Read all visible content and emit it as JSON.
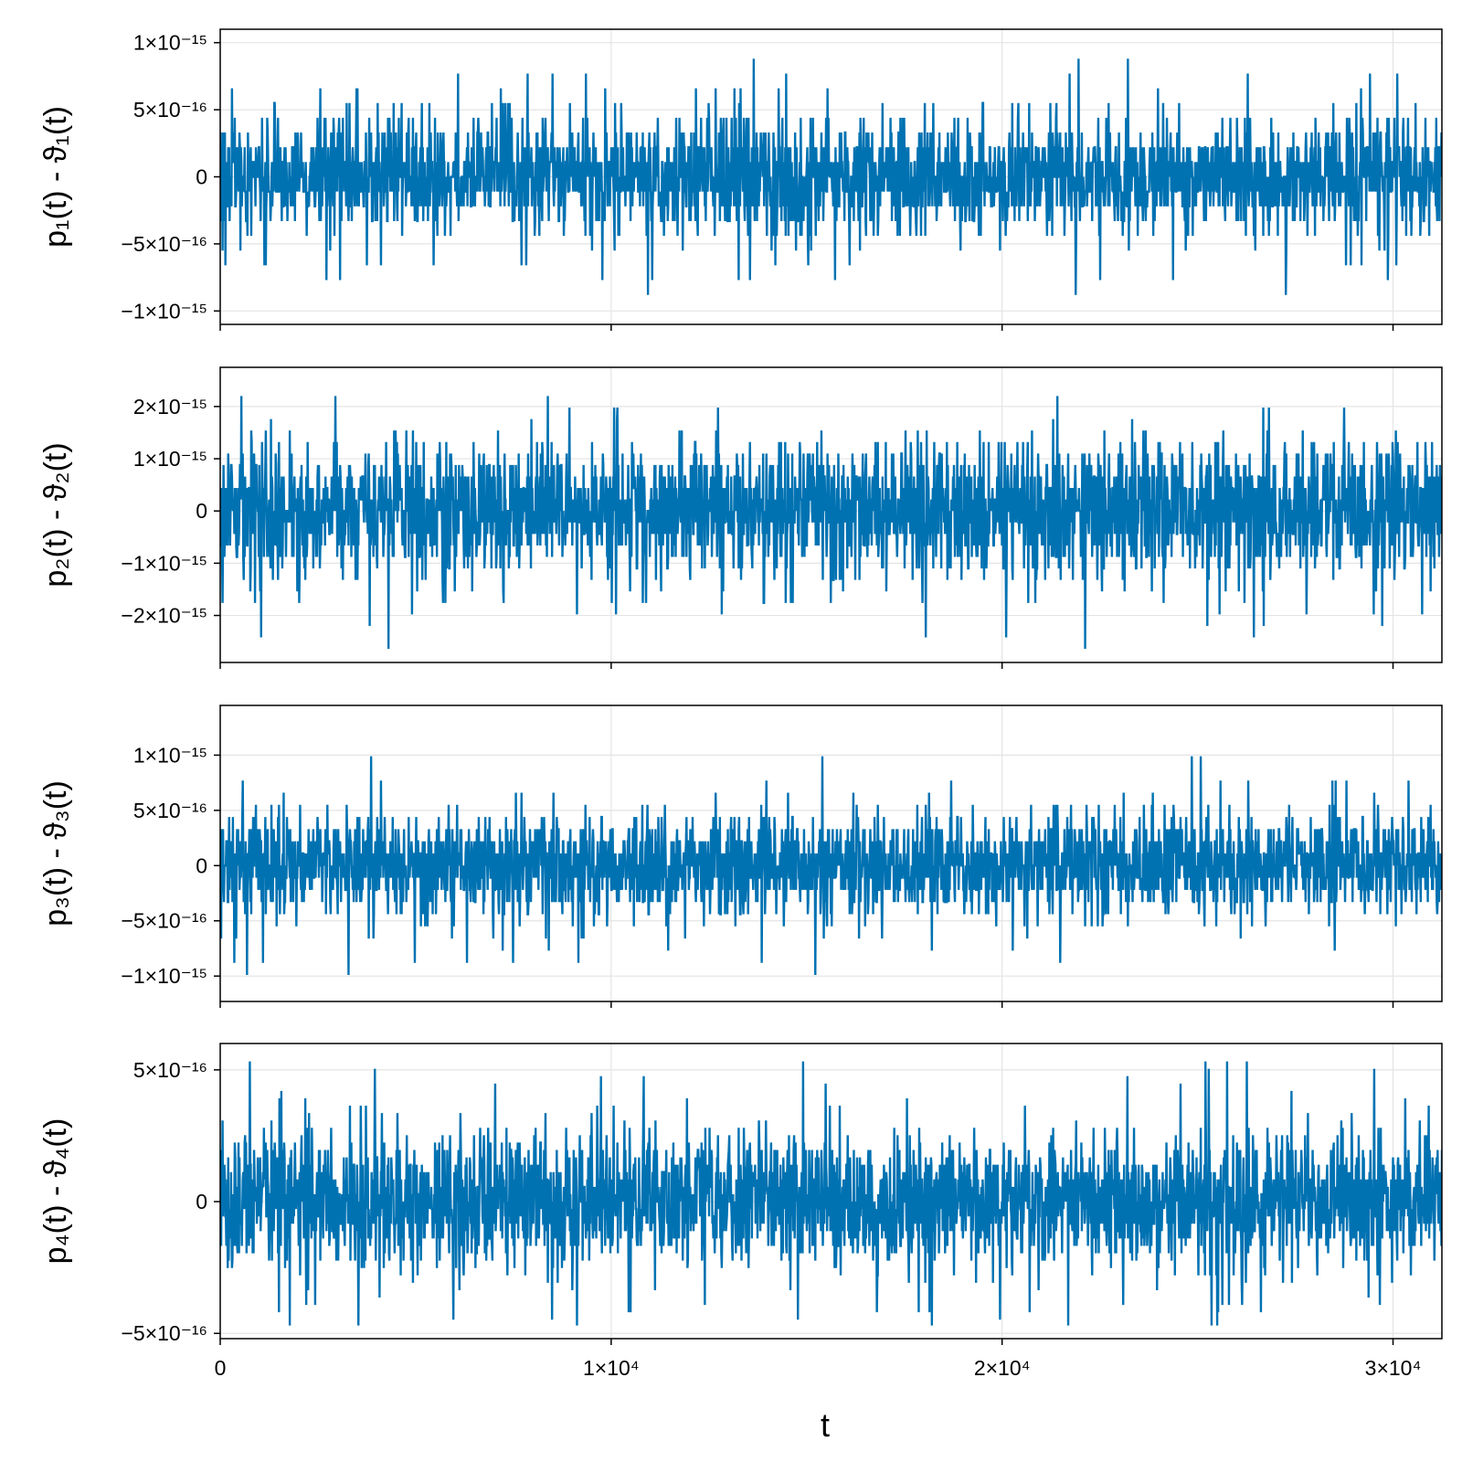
{
  "chart_data": {
    "type": "line",
    "xlabel": "t",
    "xlim": [
      0,
      31250
    ],
    "x_ticks": [
      {
        "value": 0,
        "label": "0"
      },
      {
        "value": 10000,
        "label": "1×10⁴"
      },
      {
        "value": 20000,
        "label": "2×10⁴"
      },
      {
        "value": 30000,
        "label": "3×10⁴"
      }
    ],
    "grid": true,
    "series_color": "#0072b2",
    "panels": [
      {
        "ylabel": "p₁(t) - ϑ₁(t)",
        "ylim": [
          -1.1e-15,
          1.1e-15
        ],
        "y_ticks": [
          {
            "value": 1e-15,
            "label": "1×10⁻¹⁵"
          },
          {
            "value": 5e-16,
            "label": "5×10⁻¹⁶"
          },
          {
            "value": 0,
            "label": "0"
          },
          {
            "value": -5e-16,
            "label": "−5×10⁻¹⁶"
          },
          {
            "value": -1e-15,
            "label": "−1×10⁻¹⁵"
          }
        ],
        "quantum": 1.1e-16,
        "sigma": 2.2e-16,
        "max": 1e-15,
        "min": -1e-15
      },
      {
        "ylabel": "p₂(t) - ϑ₂(t)",
        "ylim": [
          -2.9e-15,
          2.75e-15
        ],
        "y_ticks": [
          {
            "value": 2e-15,
            "label": "2×10⁻¹⁵"
          },
          {
            "value": 1e-15,
            "label": "1×10⁻¹⁵"
          },
          {
            "value": 0,
            "label": "0"
          },
          {
            "value": -1e-15,
            "label": "−1×10⁻¹⁵"
          },
          {
            "value": -2e-15,
            "label": "−2×10⁻¹⁵"
          }
        ],
        "quantum": 2.2e-16,
        "sigma": 6.5e-16,
        "max": 2.45e-15,
        "min": -2.65e-15
      },
      {
        "ylabel": "p₃(t) - ϑ₃(t)",
        "ylim": [
          -1.23e-15,
          1.45e-15
        ],
        "y_ticks": [
          {
            "value": 1e-15,
            "label": "1×10⁻¹⁵"
          },
          {
            "value": 5e-16,
            "label": "5×10⁻¹⁶"
          },
          {
            "value": 0,
            "label": "0"
          },
          {
            "value": -5e-16,
            "label": "−5×10⁻¹⁶"
          },
          {
            "value": -1e-15,
            "label": "−1×10⁻¹⁵"
          }
        ],
        "quantum": 1.1e-16,
        "sigma": 2.4e-16,
        "max": 1.33e-15,
        "min": -1.1e-15
      },
      {
        "ylabel": "p₄(t) - ϑ₄(t)",
        "ylim": [
          -5.2e-16,
          6e-16
        ],
        "y_ticks": [
          {
            "value": 5e-16,
            "label": "5×10⁻¹⁶"
          },
          {
            "value": 0,
            "label": "0"
          },
          {
            "value": -5e-16,
            "label": "−5×10⁻¹⁶"
          }
        ],
        "quantum": 2.8e-17,
        "sigma": 1.3e-16,
        "max": 5.5e-16,
        "min": -4.7e-16
      }
    ]
  }
}
